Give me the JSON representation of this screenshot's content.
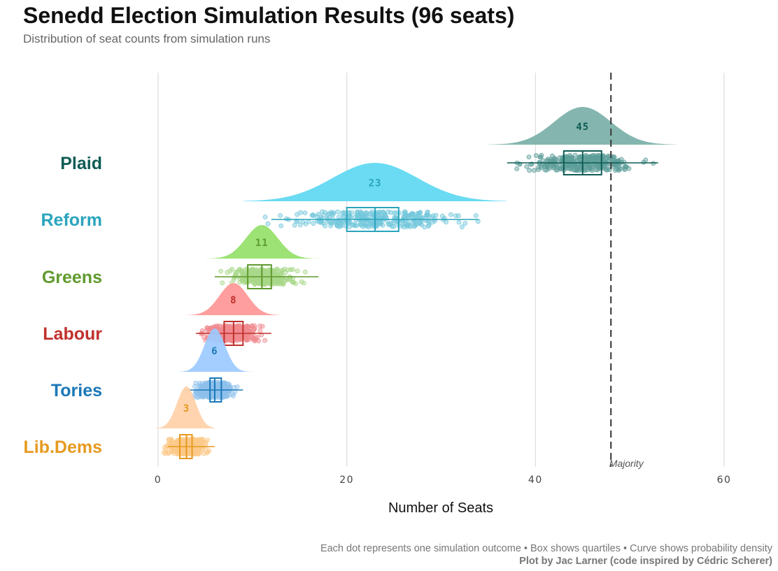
{
  "title": "Senedd Election Simulation Results (96 seats)",
  "subtitle": "Distribution of seat counts from simulation runs",
  "caption_line1": "Each dot represents one simulation outcome • Box shows quartiles • Curve shows probability density",
  "caption_line2": "Plot by Jac Larner (code inspired by Cédric Scherer)",
  "chart_data": {
    "type": "raincloud",
    "title": "Senedd Election Simulation Results (96 seats)",
    "subtitle": "Distribution of seat counts from simulation runs",
    "xlabel": "Number of Seats",
    "ylabel": "",
    "xlim": [
      0,
      60
    ],
    "xticks": [
      0,
      20,
      40,
      60
    ],
    "grid": true,
    "majority": {
      "value": 48,
      "label": "Majority"
    },
    "series": [
      {
        "name": "Plaid",
        "median": 45,
        "q1": 43,
        "q3": 47,
        "min": 37,
        "max": 53,
        "range": [
          35,
          55
        ],
        "sd": 3.0,
        "color": "#0e5c55",
        "fill": "#79b0a8",
        "point_color": "#5e9e9a"
      },
      {
        "name": "Reform",
        "median": 23,
        "q1": 20,
        "q3": 25.5,
        "min": 12,
        "max": 34,
        "range": [
          9,
          37
        ],
        "sd": 4.5,
        "color": "#2aa4bd",
        "fill": "#5dd8f2",
        "point_color": "#74c8dc"
      },
      {
        "name": "Greens",
        "median": 11,
        "q1": 9.5,
        "q3": 12,
        "min": 6,
        "max": 17,
        "range": [
          5,
          18
        ],
        "sd": 1.7,
        "color": "#5f9a2e",
        "fill": "#94df68",
        "point_color": "#a8d88a"
      },
      {
        "name": "Labour",
        "median": 8,
        "q1": 7,
        "q3": 9,
        "min": 4,
        "max": 12,
        "range": [
          3,
          13
        ],
        "sd": 1.5,
        "color": "#c0312e",
        "fill": "#ff9696",
        "point_color": "#ef8a8e"
      },
      {
        "name": "Tories",
        "median": 6,
        "q1": 5.5,
        "q3": 6.7,
        "min": 3,
        "max": 9,
        "range": [
          2,
          10
        ],
        "sd": 1.1,
        "color": "#1a78b8",
        "fill": "#9ccaff",
        "point_color": "#8ec0ec"
      },
      {
        "name": "Lib.Dems",
        "median": 3,
        "q1": 2.3,
        "q3": 3.6,
        "min": 1,
        "max": 6,
        "range": [
          -1,
          6
        ],
        "sd": 1.0,
        "color": "#e69a1f",
        "fill": "#ffd0a8",
        "point_color": "#fcc98a"
      }
    ]
  }
}
